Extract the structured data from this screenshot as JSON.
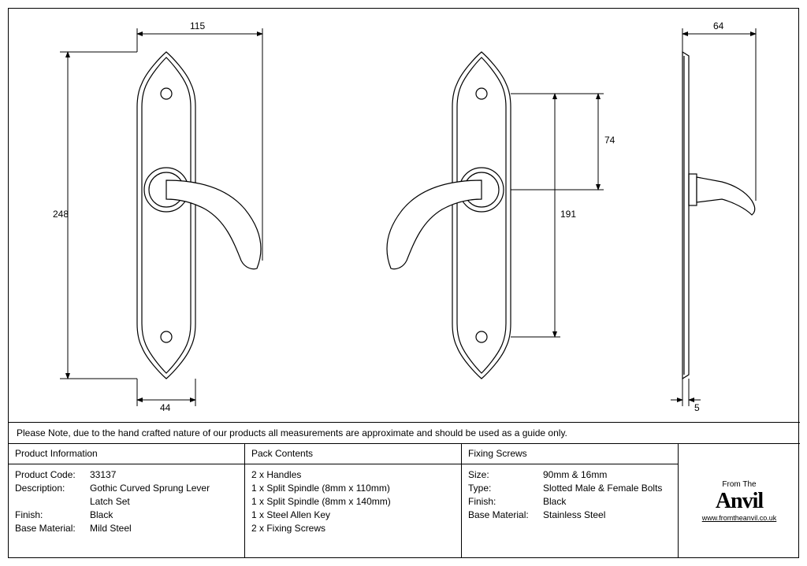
{
  "note": "Please Note, due to the hand crafted nature of our products all measurements are approximate and should be used as a guide only.",
  "dimensions": {
    "d115": "115",
    "d248": "248",
    "d44": "44",
    "d191": "191",
    "d74": "74",
    "d64": "64",
    "d5": "5"
  },
  "productInfo": {
    "header": "Product Information",
    "rows": [
      {
        "k": "Product Code:",
        "v": "33137"
      },
      {
        "k": "Description:",
        "v": "Gothic Curved Sprung Lever"
      },
      {
        "k": "",
        "v": "Latch Set"
      },
      {
        "k": "Finish:",
        "v": "Black"
      },
      {
        "k": "Base Material:",
        "v": "Mild Steel"
      }
    ]
  },
  "packContents": {
    "header": "Pack Contents",
    "items": [
      "2 x Handles",
      "1 x Split Spindle (8mm x 110mm)",
      "1 x Split Spindle (8mm x 140mm)",
      "1 x Steel Allen Key",
      "2 x Fixing Screws"
    ]
  },
  "fixingScrews": {
    "header": "Fixing Screws",
    "rows": [
      {
        "k": "Size:",
        "v": "90mm & 16mm"
      },
      {
        "k": "Type:",
        "v": "Slotted Male & Female Bolts"
      },
      {
        "k": "Finish:",
        "v": "Black"
      },
      {
        "k": "Base Material:",
        "v": "Stainless Steel"
      }
    ]
  },
  "logo": {
    "prefix": "From The",
    "name": "Anvil",
    "url": "www.fromtheanvil.co.uk"
  },
  "style": {
    "stroke": "#000000",
    "stroke_width": 1.2,
    "dim_stroke_width": 1,
    "fontsize_dim": 12,
    "fontsize_table": 12,
    "background": "#ffffff"
  }
}
